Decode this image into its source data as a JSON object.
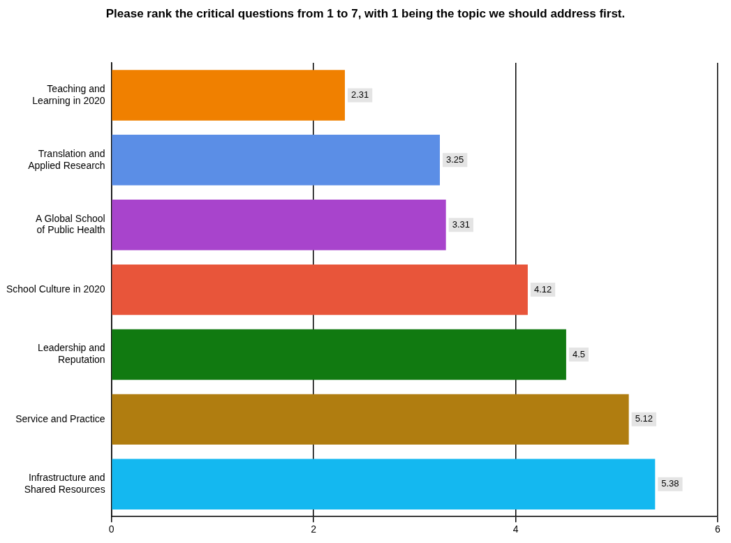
{
  "chart_data": {
    "type": "bar",
    "orientation": "horizontal",
    "title": "Please rank the critical questions from 1 to 7, with 1 being the topic we should address first.",
    "categories": [
      "Teaching and\nLearning in 2020",
      "Translation and\nApplied Research",
      "A Global School\nof Public Health",
      "School Culture in 2020",
      "Leadership and\nReputation",
      "Service and Practice",
      "Infrastructure and\nShared Resources"
    ],
    "values": [
      2.31,
      3.25,
      3.31,
      4.12,
      4.5,
      5.12,
      5.38
    ],
    "colors": [
      "#f08000",
      "#5b8ee6",
      "#a844cc",
      "#e8553a",
      "#117a11",
      "#b07d10",
      "#14b8f0"
    ],
    "xlim": [
      0,
      6
    ],
    "xticks": [
      0,
      2,
      4,
      6
    ],
    "grid": "x",
    "data_labels": true
  }
}
